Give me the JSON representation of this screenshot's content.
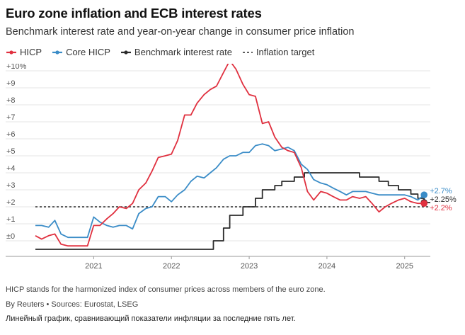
{
  "header": {
    "title": "Euro zone inflation and ECB interest rates",
    "subtitle": "Benchmark interest rate and year-on-year change in consumer price inflation"
  },
  "footer": {
    "note": "HICP stands for the harmonized index of consumer prices across members of the euro zone.",
    "source": "By Reuters • Sources: Eurostat, LSEG",
    "caption": "Линейный график, сравнивающий показатели инфляции за последние пять лет."
  },
  "colors": {
    "hicp": "#e0303f",
    "core": "#3a8cc7",
    "rate": "#2b2b2b",
    "target": "#2b2b2b"
  },
  "chart_data": {
    "type": "line",
    "ylim": [
      -0.5,
      10.5
    ],
    "xlim": [
      2020.25,
      2025.33
    ],
    "y_ticks": [
      {
        "v": 10,
        "label": "+10%"
      },
      {
        "v": 9,
        "label": "+9"
      },
      {
        "v": 8,
        "label": "+8"
      },
      {
        "v": 7,
        "label": "+7"
      },
      {
        "v": 6,
        "label": "+6"
      },
      {
        "v": 5,
        "label": "+5"
      },
      {
        "v": 4,
        "label": "+4"
      },
      {
        "v": 3,
        "label": "+3"
      },
      {
        "v": 2,
        "label": "+2"
      },
      {
        "v": 1,
        "label": "+1"
      },
      {
        "v": 0,
        "label": "±0"
      }
    ],
    "x_ticks": [
      {
        "v": 2021.0,
        "label": "2021"
      },
      {
        "v": 2022.0,
        "label": "2022"
      },
      {
        "v": 2023.0,
        "label": "2023"
      },
      {
        "v": 2024.0,
        "label": "2024"
      },
      {
        "v": 2025.0,
        "label": "2025"
      }
    ],
    "target": {
      "name": "Inflation target",
      "value": 2.0
    },
    "series": [
      {
        "name": "HICP",
        "key": "hicp",
        "end_label": "+2.2%",
        "points": [
          [
            2020.25,
            0.3
          ],
          [
            2020.33,
            0.1
          ],
          [
            2020.42,
            0.3
          ],
          [
            2020.5,
            0.4
          ],
          [
            2020.58,
            -0.2
          ],
          [
            2020.67,
            -0.3
          ],
          [
            2020.75,
            -0.3
          ],
          [
            2020.83,
            -0.3
          ],
          [
            2020.92,
            -0.3
          ],
          [
            2021.0,
            0.9
          ],
          [
            2021.08,
            0.9
          ],
          [
            2021.17,
            1.3
          ],
          [
            2021.25,
            1.6
          ],
          [
            2021.33,
            2.0
          ],
          [
            2021.42,
            1.9
          ],
          [
            2021.5,
            2.2
          ],
          [
            2021.58,
            3.0
          ],
          [
            2021.67,
            3.4
          ],
          [
            2021.75,
            4.1
          ],
          [
            2021.83,
            4.9
          ],
          [
            2021.92,
            5.0
          ],
          [
            2022.0,
            5.1
          ],
          [
            2022.08,
            5.9
          ],
          [
            2022.17,
            7.4
          ],
          [
            2022.25,
            7.4
          ],
          [
            2022.33,
            8.1
          ],
          [
            2022.42,
            8.6
          ],
          [
            2022.5,
            8.9
          ],
          [
            2022.58,
            9.1
          ],
          [
            2022.67,
            9.9
          ],
          [
            2022.75,
            10.6
          ],
          [
            2022.83,
            10.1
          ],
          [
            2022.92,
            9.2
          ],
          [
            2023.0,
            8.6
          ],
          [
            2023.08,
            8.5
          ],
          [
            2023.17,
            6.9
          ],
          [
            2023.25,
            7.0
          ],
          [
            2023.33,
            6.1
          ],
          [
            2023.42,
            5.5
          ],
          [
            2023.5,
            5.3
          ],
          [
            2023.58,
            5.2
          ],
          [
            2023.67,
            4.3
          ],
          [
            2023.75,
            2.9
          ],
          [
            2023.83,
            2.4
          ],
          [
            2023.92,
            2.9
          ],
          [
            2024.0,
            2.8
          ],
          [
            2024.08,
            2.6
          ],
          [
            2024.17,
            2.4
          ],
          [
            2024.25,
            2.4
          ],
          [
            2024.33,
            2.6
          ],
          [
            2024.42,
            2.5
          ],
          [
            2024.5,
            2.6
          ],
          [
            2024.58,
            2.2
          ],
          [
            2024.67,
            1.7
          ],
          [
            2024.75,
            2.0
          ],
          [
            2024.83,
            2.2
          ],
          [
            2024.92,
            2.4
          ],
          [
            2025.0,
            2.5
          ],
          [
            2025.08,
            2.3
          ],
          [
            2025.17,
            2.2
          ],
          [
            2025.25,
            2.2
          ]
        ]
      },
      {
        "name": "Core HICP",
        "key": "core",
        "end_label": "+2.7%",
        "points": [
          [
            2020.25,
            0.9
          ],
          [
            2020.33,
            0.9
          ],
          [
            2020.42,
            0.8
          ],
          [
            2020.5,
            1.2
          ],
          [
            2020.58,
            0.4
          ],
          [
            2020.67,
            0.2
          ],
          [
            2020.75,
            0.2
          ],
          [
            2020.83,
            0.2
          ],
          [
            2020.92,
            0.2
          ],
          [
            2021.0,
            1.4
          ],
          [
            2021.08,
            1.1
          ],
          [
            2021.17,
            0.9
          ],
          [
            2021.25,
            0.8
          ],
          [
            2021.33,
            0.9
          ],
          [
            2021.42,
            0.9
          ],
          [
            2021.5,
            0.7
          ],
          [
            2021.58,
            1.6
          ],
          [
            2021.67,
            1.9
          ],
          [
            2021.75,
            2.0
          ],
          [
            2021.83,
            2.6
          ],
          [
            2021.92,
            2.6
          ],
          [
            2022.0,
            2.3
          ],
          [
            2022.08,
            2.7
          ],
          [
            2022.17,
            3.0
          ],
          [
            2022.25,
            3.5
          ],
          [
            2022.33,
            3.8
          ],
          [
            2022.42,
            3.7
          ],
          [
            2022.5,
            4.0
          ],
          [
            2022.58,
            4.3
          ],
          [
            2022.67,
            4.8
          ],
          [
            2022.75,
            5.0
          ],
          [
            2022.83,
            5.0
          ],
          [
            2022.92,
            5.2
          ],
          [
            2023.0,
            5.2
          ],
          [
            2023.08,
            5.6
          ],
          [
            2023.17,
            5.7
          ],
          [
            2023.25,
            5.6
          ],
          [
            2023.33,
            5.3
          ],
          [
            2023.42,
            5.4
          ],
          [
            2023.5,
            5.5
          ],
          [
            2023.58,
            5.3
          ],
          [
            2023.67,
            4.5
          ],
          [
            2023.75,
            4.2
          ],
          [
            2023.83,
            3.6
          ],
          [
            2023.92,
            3.4
          ],
          [
            2024.0,
            3.3
          ],
          [
            2024.08,
            3.1
          ],
          [
            2024.17,
            2.9
          ],
          [
            2024.25,
            2.7
          ],
          [
            2024.33,
            2.9
          ],
          [
            2024.42,
            2.9
          ],
          [
            2024.5,
            2.9
          ],
          [
            2024.58,
            2.8
          ],
          [
            2024.67,
            2.7
          ],
          [
            2024.75,
            2.7
          ],
          [
            2024.83,
            2.7
          ],
          [
            2024.92,
            2.7
          ],
          [
            2025.0,
            2.7
          ],
          [
            2025.08,
            2.6
          ],
          [
            2025.17,
            2.4
          ],
          [
            2025.25,
            2.7
          ]
        ]
      },
      {
        "name": "Benchmark interest rate",
        "key": "rate",
        "end_label": "+2.25%",
        "step": true,
        "points": [
          [
            2020.25,
            -0.5
          ],
          [
            2022.5,
            -0.5
          ],
          [
            2022.54,
            0.0
          ],
          [
            2022.67,
            0.75
          ],
          [
            2022.75,
            1.5
          ],
          [
            2022.92,
            2.0
          ],
          [
            2023.08,
            2.5
          ],
          [
            2023.17,
            3.0
          ],
          [
            2023.33,
            3.25
          ],
          [
            2023.42,
            3.5
          ],
          [
            2023.58,
            3.75
          ],
          [
            2023.71,
            4.0
          ],
          [
            2024.42,
            3.75
          ],
          [
            2024.67,
            3.5
          ],
          [
            2024.79,
            3.25
          ],
          [
            2024.92,
            3.0
          ],
          [
            2025.08,
            2.75
          ],
          [
            2025.17,
            2.5
          ],
          [
            2025.25,
            2.25
          ]
        ]
      }
    ]
  }
}
